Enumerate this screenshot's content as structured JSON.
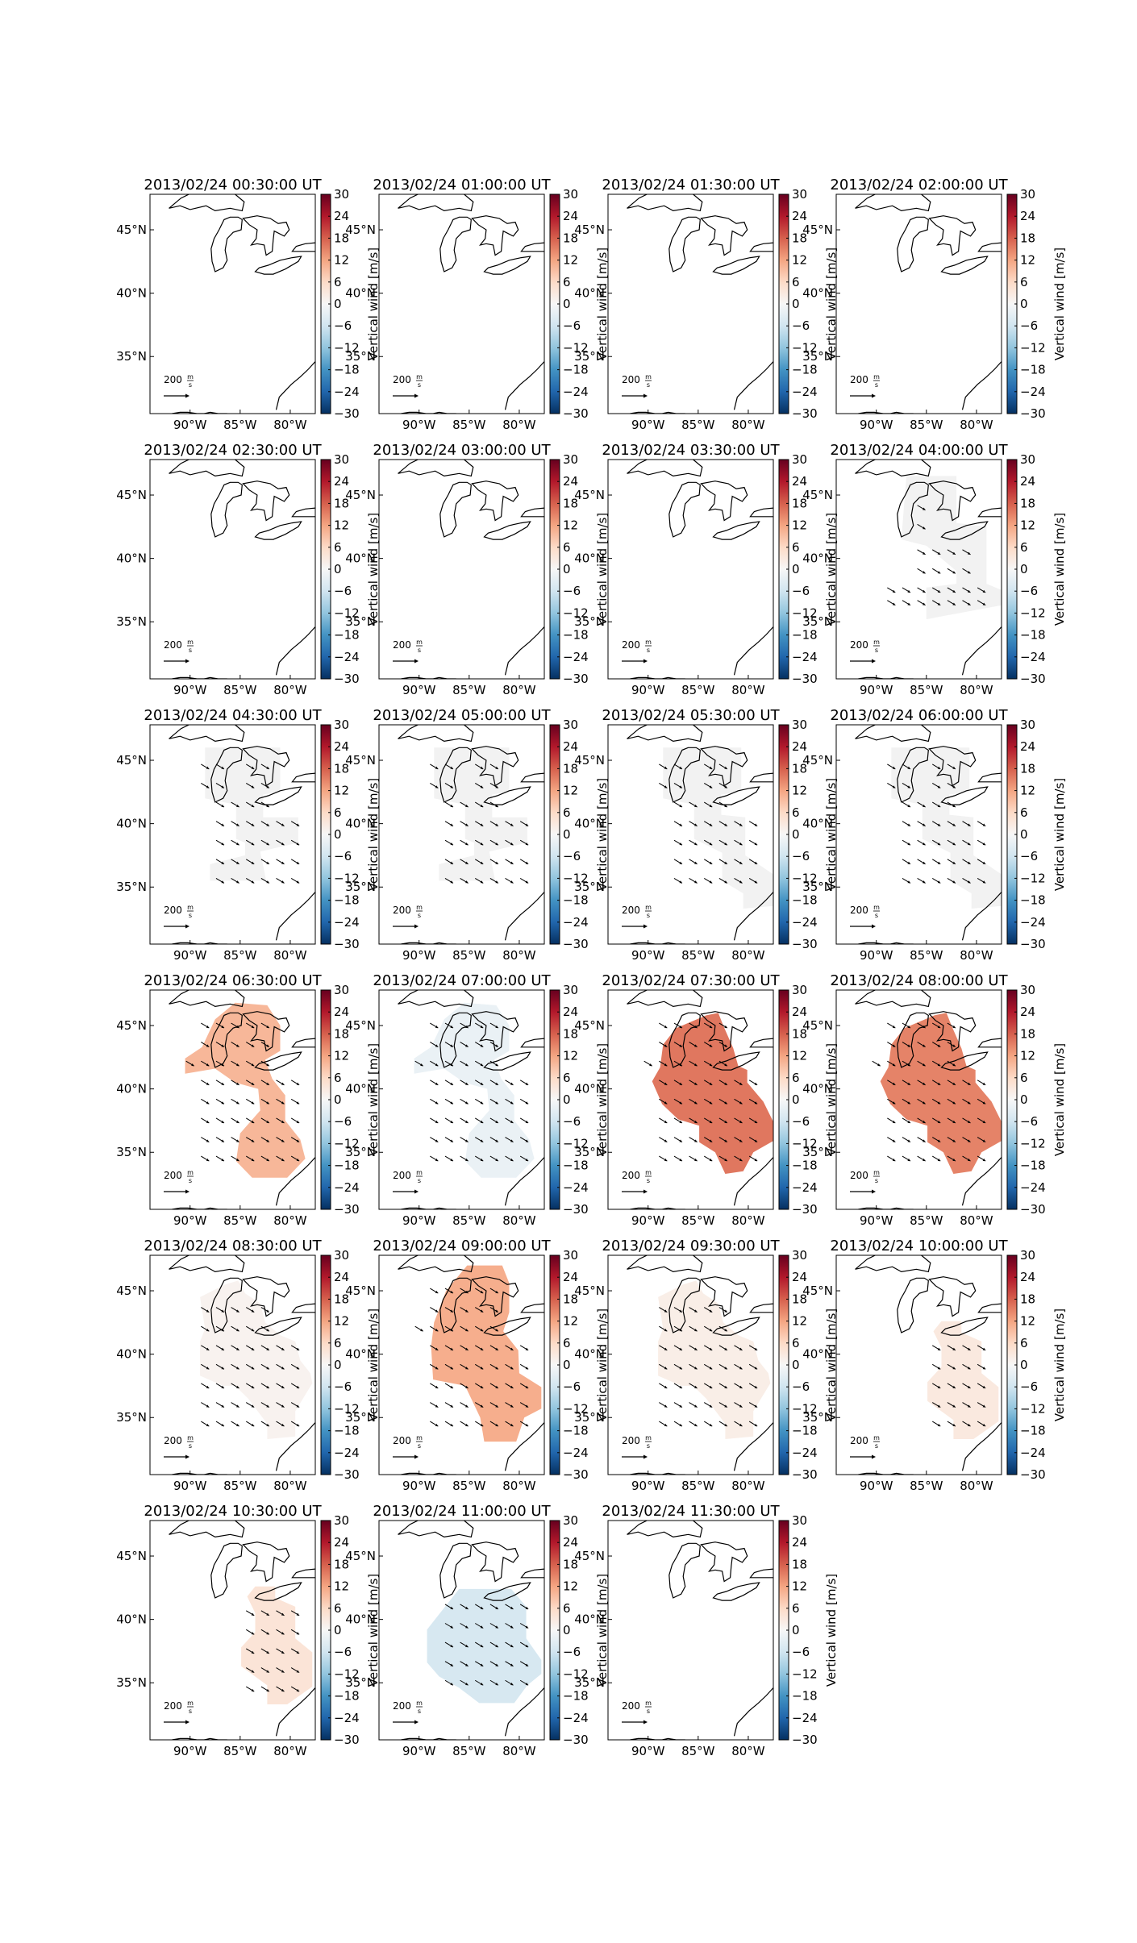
{
  "chart_data": {
    "type": "heatmap",
    "layout": {
      "rows": 6,
      "cols": 4
    },
    "colormap": "RdBu_r",
    "colorbar": {
      "label": "Vertical wind [m/s]",
      "vmin": -30,
      "vmax": 30,
      "ticks": [
        "30",
        "24",
        "18",
        "12",
        "6",
        "0",
        "−6",
        "−12",
        "−18",
        "−24",
        "−30"
      ]
    },
    "xticks": [
      "90°W",
      "85°W",
      "80°W"
    ],
    "yticks": [
      "45°N",
      "40°N",
      "35°N"
    ],
    "scale_label": "200",
    "scale_unit_num": "m",
    "scale_unit_den": "s",
    "colors": {
      "neutral": "#f2f2f2",
      "line": "#000000"
    },
    "panels": [
      {
        "title": "2013/02/24 00:30:00 UT",
        "value": null,
        "region": null
      },
      {
        "title": "2013/02/24 01:00:00 UT",
        "value": null,
        "region": null
      },
      {
        "title": "2013/02/24 01:30:00 UT",
        "value": null,
        "region": null
      },
      {
        "title": "2013/02/24 02:00:00 UT",
        "value": null,
        "region": null
      },
      {
        "title": "2013/02/24 02:30:00 UT",
        "value": null,
        "region": null
      },
      {
        "title": "2013/02/24 03:00:00 UT",
        "value": null,
        "region": null
      },
      {
        "title": "2013/02/24 03:30:00 UT",
        "value": null,
        "region": null
      },
      {
        "title": "2013/02/24 04:00:00 UT",
        "value": 0,
        "region": "R1"
      },
      {
        "title": "2013/02/24 04:30:00 UT",
        "value": 0,
        "region": "R2"
      },
      {
        "title": "2013/02/24 05:00:00 UT",
        "value": 0,
        "region": "R2"
      },
      {
        "title": "2013/02/24 05:30:00 UT",
        "value": 0,
        "region": "R3"
      },
      {
        "title": "2013/02/24 06:00:00 UT",
        "value": 0,
        "region": "R3"
      },
      {
        "title": "2013/02/24 06:30:00 UT",
        "value": 10,
        "region": "R4"
      },
      {
        "title": "2013/02/24 07:00:00 UT",
        "value": -2,
        "region": "R4"
      },
      {
        "title": "2013/02/24 07:30:00 UT",
        "value": 16,
        "region": "R5"
      },
      {
        "title": "2013/02/24 08:00:00 UT",
        "value": 15,
        "region": "R5"
      },
      {
        "title": "2013/02/24 08:30:00 UT",
        "value": 1,
        "region": "R6"
      },
      {
        "title": "2013/02/24 09:00:00 UT",
        "value": 11,
        "region": "R7"
      },
      {
        "title": "2013/02/24 09:30:00 UT",
        "value": 2,
        "region": "R6"
      },
      {
        "title": "2013/02/24 10:00:00 UT",
        "value": 3,
        "region": "R8"
      },
      {
        "title": "2013/02/24 10:30:00 UT",
        "value": 4,
        "region": "R8"
      },
      {
        "title": "2013/02/24 11:00:00 UT",
        "value": -5,
        "region": "R9"
      },
      {
        "title": "2013/02/24 11:30:00 UT",
        "value": null,
        "region": null
      }
    ]
  }
}
